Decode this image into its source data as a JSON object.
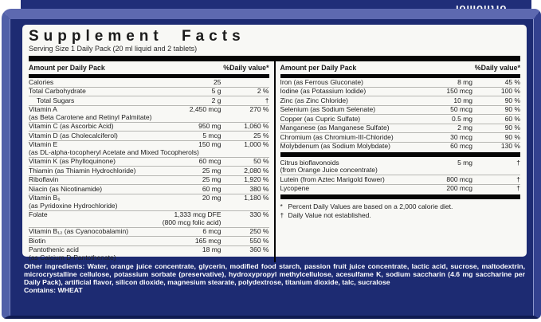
{
  "colors": {
    "box_navy": "#1d2b72",
    "bevel_blue": "#5d69b0",
    "panel_white": "#f8f8f5",
    "logo_red_accent": "#b92b2b",
    "bar_black": "#050505"
  },
  "brand": {
    "logo_text": "orthomol"
  },
  "panel": {
    "title": "Supplement Facts",
    "serving_line": "Serving Size 1 Daily Pack  (20 ml liquid and 2 tablets)",
    "column_header_left": "Amount per Daily Pack",
    "column_header_right": "%Daily value*",
    "left_rows": [
      {
        "name": "Calories",
        "amount": "25",
        "dv": ""
      },
      {
        "name": "Total Carbohydrate",
        "amount": "5 g",
        "dv": "2 %"
      },
      {
        "name": "Total Sugars",
        "indent": true,
        "amount": "2 g",
        "dv": "†"
      },
      {
        "name": "Vitamin A",
        "sub": "(as Beta Carotene and Retinyl Palmitate)",
        "amount": "2,450 mcg",
        "dv": "270 %"
      },
      {
        "name": "Vitamin C (as Ascorbic Acid)",
        "amount": "950 mg",
        "dv": "1,060 %"
      },
      {
        "name": "Vitamin D (as Cholecalciferol)",
        "amount": "5 mcg",
        "dv": "25 %"
      },
      {
        "name": "Vitamin E",
        "sub": "(as DL-alpha-tocopheryl Acetate and Mixed Tocopherols)",
        "amount": "150 mg",
        "dv": "1,000 %"
      },
      {
        "name": "Vitamin K (as Phylloquinone)",
        "amount": "60 mcg",
        "dv": "50 %"
      },
      {
        "name": "Thiamin (as Thiamin Hydrochloride)",
        "amount": "25 mg",
        "dv": "2,080 %"
      },
      {
        "name": "Riboflavin",
        "amount": "25 mg",
        "dv": "1,920 %"
      },
      {
        "name": "Niacin (as Nicotinamide)",
        "amount": "60 mg",
        "dv": "380 %"
      },
      {
        "name": "Vitamin B₆",
        "sub": "(as Pyridoxine Hydrochloride)",
        "amount": "20 mg",
        "dv": "1,180 %"
      },
      {
        "name": "Folate",
        "amount": "1,333 mcg DFE",
        "amount2": "(800 mcg folic acid)",
        "dv": "330 %"
      },
      {
        "name": "Vitamin B₁₂ (as Cyanocobalamin)",
        "amount": "6 mcg",
        "dv": "250 %"
      },
      {
        "name": "Biotin",
        "amount": "165 mcg",
        "dv": "550 %"
      },
      {
        "name": "Pantothenic acid",
        "sub": "(as Calcium D-Pantothenate)",
        "amount": "18 mg",
        "dv": "360 %"
      }
    ],
    "right_rows_minerals": [
      {
        "name": "Iron (as Ferrous Gluconate)",
        "amount": "8 mg",
        "dv": "45 %"
      },
      {
        "name": "Iodine (as Potassium Iodide)",
        "amount": "150 mcg",
        "dv": "100 %"
      },
      {
        "name": "Zinc (as Zinc Chloride)",
        "amount": "10 mg",
        "dv": "90 %"
      },
      {
        "name": "Selenium (as Sodium Selenate)",
        "amount": "50 mcg",
        "dv": "90 %"
      },
      {
        "name": "Copper (as Cupric Sulfate)",
        "amount": "0.5 mg",
        "dv": "60 %"
      },
      {
        "name": "Manganese (as Manganese Sulfate)",
        "amount": "2 mg",
        "dv": "90 %"
      },
      {
        "name": "Chromium (as Chromium-III-Chloride)",
        "amount": "30 mcg",
        "dv": "90 %"
      },
      {
        "name": "Molybdenum (as Sodium Molybdate)",
        "amount": "60 mcg",
        "dv": "130 %"
      }
    ],
    "right_rows_other": [
      {
        "name": "Citrus bioflavonoids",
        "sub": "(from Orange Juice concentrate)",
        "amount": "5 mg",
        "dv": "†"
      },
      {
        "name": "Lutein (from Aztec Marigold flower)",
        "amount": "800 mcg",
        "dv": "†"
      },
      {
        "name": "Lycopene",
        "amount": "200 mcg",
        "dv": "†"
      }
    ],
    "footnotes": [
      {
        "symbol": "*",
        "text": "Percent Daily Values are based on a 2,000 calorie diet."
      },
      {
        "symbol": "†",
        "text": "Daily Value not established."
      }
    ]
  },
  "bottom": {
    "other_ingredients_label": "Other ingredients:",
    "other_ingredients": " Water, orange juice concentrate, glycerin, modified food starch, passion fruit juice concentrate, lactic acid, sucrose, maltodextrin, microcrystalline cellulose, potassium sorbate (preservative), hydroxypropyl methylcellulose, acesulfame K, sodium saccharin (4.6 mg saccharine per Daily Pack), artificial flavor, silicon dioxide, magnesium stearate, polydextrose, titanium dioxide, talc, sucralose",
    "contains": "Contains: WHEAT"
  }
}
